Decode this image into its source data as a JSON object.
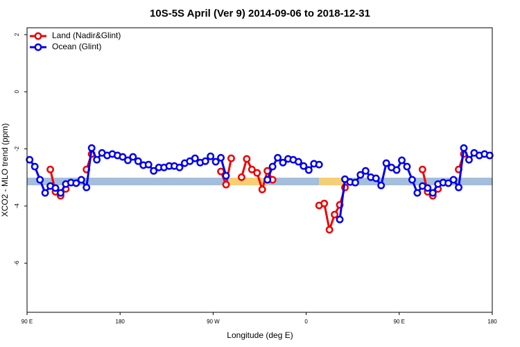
{
  "chart_data": {
    "type": "line",
    "title": "10S-5S April (Ver 9)   2014-09-06 to 2018-12-31",
    "x_label": "Longitude (deg E)",
    "y_label": "XCO2 - MLO trend (ppm)",
    "xlim": [
      90,
      540
    ],
    "ylim": [
      -7.72,
      2.24
    ],
    "xticks": [
      {
        "value": 90,
        "label": "90 E"
      },
      {
        "value": 180,
        "label": "180"
      },
      {
        "value": 270,
        "label": "90 W"
      },
      {
        "value": 360,
        "label": "0"
      },
      {
        "value": 450,
        "label": "90 E"
      },
      {
        "value": 540,
        "label": "180"
      }
    ],
    "yticks": [
      -6,
      -4,
      -2,
      0,
      2
    ],
    "legend": "top-left",
    "series": [
      {
        "name": "Land (Nadir&Glint)",
        "color": "#ee0000",
        "x": [
          112.5,
          117.5,
          122.5,
          127.5,
          130,
          147.5,
          152.5,
          215,
          277.5,
          282.5,
          287.5,
          292.5,
          297.5,
          302.5,
          307.5,
          312.5,
          317.5,
          322.5,
          327.5,
          350,
          372.5,
          377.5,
          382.5,
          387.5,
          392.5,
          397.5,
          430,
          472.5,
          477.5,
          482.5,
          487.5,
          490,
          507.5,
          512.5
        ],
        "values": [
          -2.72,
          -3.5,
          -3.64,
          -3.4,
          null,
          -2.72,
          -2.18,
          null,
          -2.79,
          -3.25,
          -2.33,
          null,
          -2.99,
          -2.35,
          -2.72,
          -2.84,
          -3.42,
          -2.77,
          -3.08,
          null,
          -3.98,
          -3.91,
          -4.83,
          -4.3,
          -3.96,
          -3.35,
          null,
          -2.72,
          -3.5,
          -3.64,
          -3.4,
          null,
          -2.72,
          -2.18
        ]
      },
      {
        "name": "Ocean (Glint)",
        "color": "#0000ee",
        "x": [
          92.5,
          97.5,
          102.5,
          107.5,
          112.5,
          117.5,
          122.5,
          127.5,
          132.5,
          137.5,
          142.5,
          147.5,
          152.5,
          157.5,
          162.5,
          167.5,
          172.5,
          177.5,
          182.5,
          187.5,
          192.5,
          197.5,
          202.5,
          207.5,
          212.5,
          217.5,
          222.5,
          227.5,
          232.5,
          237.5,
          242.5,
          247.5,
          252.5,
          257.5,
          262.5,
          267.5,
          272.5,
          277.5,
          282.5,
          300,
          322.5,
          327.5,
          332.5,
          337.5,
          342.5,
          347.5,
          352.5,
          357.5,
          362.5,
          367.5,
          372.5,
          380,
          392.5,
          397.5,
          402.5,
          407.5,
          412.5,
          417.5,
          422.5,
          427.5,
          432.5,
          437.5,
          442.5,
          447.5,
          452.5,
          457.5,
          462.5,
          467.5,
          472.5,
          477.5,
          482.5,
          487.5,
          492.5,
          497.5,
          502.5,
          507.5,
          512.5,
          517.5,
          522.5,
          527.5,
          532.5,
          537.5
        ],
        "values": [
          -2.38,
          -2.62,
          -3.08,
          -3.54,
          -3.3,
          -3.37,
          -3.54,
          -3.23,
          -3.18,
          -3.2,
          -3.08,
          -3.35,
          -1.97,
          -2.38,
          -2.14,
          -2.23,
          -2.18,
          -2.23,
          -2.28,
          -2.4,
          -2.28,
          -2.43,
          -2.57,
          -2.55,
          -2.77,
          -2.65,
          -2.65,
          -2.6,
          -2.6,
          -2.65,
          -2.5,
          -2.43,
          -2.33,
          -2.48,
          -2.43,
          -2.26,
          -2.45,
          -2.31,
          -2.94,
          null,
          -3.08,
          -2.62,
          -2.31,
          -2.48,
          -2.35,
          -2.38,
          -2.45,
          -2.6,
          -2.74,
          -2.52,
          -2.55,
          null,
          -4.47,
          -3.06,
          -3.16,
          -3.18,
          -2.91,
          -2.77,
          -2.99,
          -3.03,
          -3.28,
          -2.5,
          -2.65,
          -2.74,
          -2.4,
          -2.62,
          -3.08,
          -3.54,
          -3.3,
          -3.37,
          -3.54,
          -3.23,
          -3.18,
          -3.2,
          -3.08,
          -3.35,
          -1.97,
          -2.38,
          -2.14,
          -2.23,
          -2.18,
          -2.23
        ]
      }
    ]
  }
}
